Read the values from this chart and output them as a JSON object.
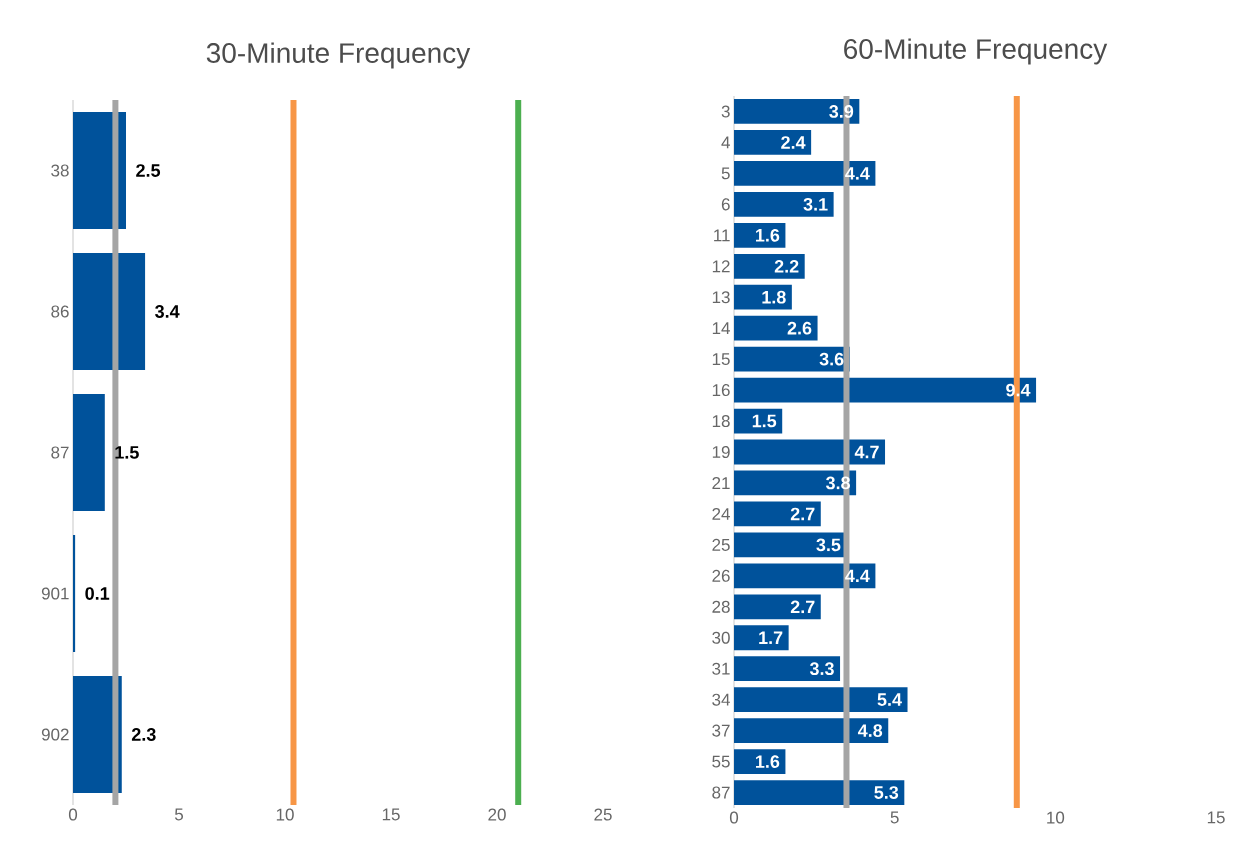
{
  "chart_data": [
    {
      "type": "bar",
      "orientation": "horizontal",
      "title": "30-Minute Frequency",
      "categories": [
        "38",
        "86",
        "87",
        "901",
        "902"
      ],
      "values": [
        2.5,
        3.4,
        1.5,
        0.1,
        2.3
      ],
      "color": "#00529b",
      "data_labels": true,
      "xlim": [
        0,
        25
      ],
      "xticks": [
        0,
        5,
        10,
        15,
        20,
        25
      ],
      "grid": false,
      "ref_lines": [
        {
          "axis": "x",
          "value": 2.0,
          "color": "#a5a5a5"
        },
        {
          "axis": "x",
          "value": 10.4,
          "color": "#f79646"
        },
        {
          "axis": "x",
          "value": 21.0,
          "color": "#4caf50"
        }
      ]
    },
    {
      "type": "bar",
      "orientation": "horizontal",
      "title": "60-Minute Frequency",
      "categories": [
        "3",
        "4",
        "5",
        "6",
        "11",
        "12",
        "13",
        "14",
        "15",
        "16",
        "18",
        "19",
        "21",
        "24",
        "25",
        "26",
        "28",
        "30",
        "31",
        "34",
        "37",
        "55",
        "87"
      ],
      "values": [
        3.9,
        2.4,
        4.4,
        3.1,
        1.6,
        2.2,
        1.8,
        2.6,
        3.6,
        9.4,
        1.5,
        4.7,
        3.8,
        2.7,
        3.5,
        4.4,
        2.7,
        1.7,
        3.3,
        5.4,
        4.8,
        1.6,
        5.3
      ],
      "color": "#00529b",
      "data_labels": true,
      "xlim": [
        0,
        15
      ],
      "xticks": [
        0,
        5,
        10,
        15
      ],
      "grid": false,
      "ref_lines": [
        {
          "axis": "x",
          "value": 3.5,
          "color": "#a5a5a5"
        },
        {
          "axis": "x",
          "value": 8.8,
          "color": "#f79646"
        }
      ]
    }
  ]
}
